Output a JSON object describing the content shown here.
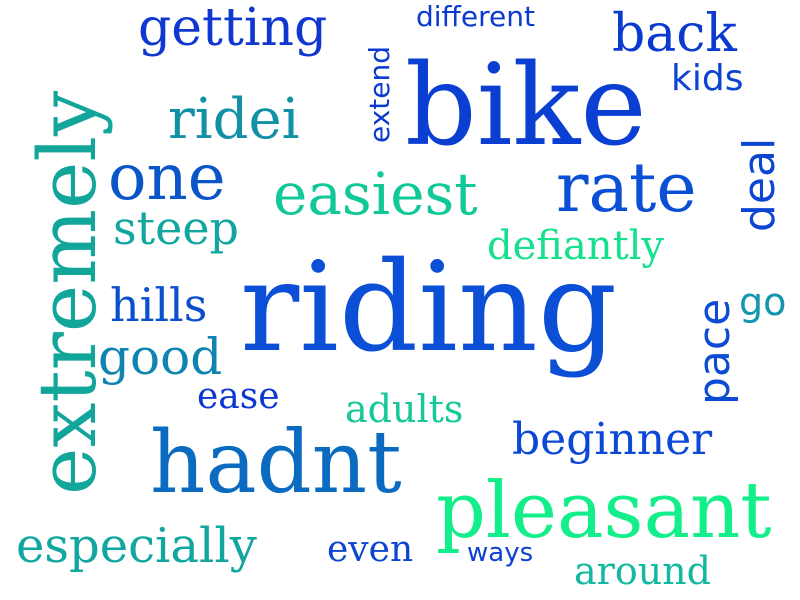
{
  "words": [
    {
      "text": "riding",
      "color": "#0a4fd6"
    },
    {
      "text": "bike",
      "color": "#0a3fd2"
    },
    {
      "text": "extremely",
      "color": "#12a59a"
    },
    {
      "text": "hadnt",
      "color": "#0a6bc0"
    },
    {
      "text": "pleasant",
      "color": "#12ee8a"
    },
    {
      "text": "rate",
      "color": "#0a4fd6"
    },
    {
      "text": "easiest",
      "color": "#10c898"
    },
    {
      "text": "one",
      "color": "#0a56c8"
    },
    {
      "text": "ridei",
      "color": "#1290a6"
    },
    {
      "text": "getting",
      "color": "#1038d0"
    },
    {
      "text": "back",
      "color": "#0b3ad0"
    },
    {
      "text": "especially",
      "color": "#12a6a0"
    },
    {
      "text": "beginner",
      "color": "#0a48d6"
    },
    {
      "text": "good",
      "color": "#1083b0"
    },
    {
      "text": "hills",
      "color": "#0a50cc"
    },
    {
      "text": "steep",
      "color": "#12a6a0"
    },
    {
      "text": "defiantly",
      "color": "#14e08e"
    },
    {
      "text": "around",
      "color": "#12b8a0"
    },
    {
      "text": "adults",
      "color": "#14c898"
    },
    {
      "text": "ease",
      "color": "#0b38d0"
    },
    {
      "text": "even",
      "color": "#0b46d2"
    },
    {
      "text": "ways",
      "color": "#0b40d2"
    },
    {
      "text": "different",
      "color": "#0b3ad0"
    },
    {
      "text": "kids",
      "color": "#0b44d2"
    },
    {
      "text": "extend",
      "color": "#0b3ad0"
    },
    {
      "text": "deal",
      "color": "#0b46d2"
    },
    {
      "text": "pace",
      "color": "#0b4cd2"
    },
    {
      "text": "go",
      "color": "#1396b0"
    }
  ]
}
